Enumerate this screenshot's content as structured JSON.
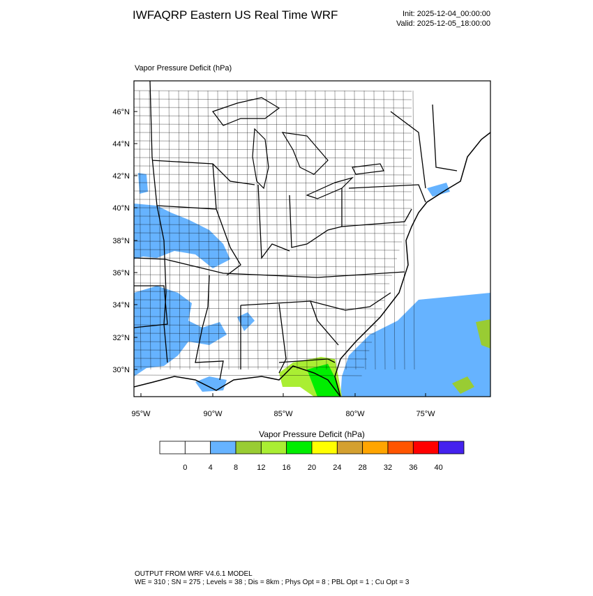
{
  "header": {
    "title": "IWFAQRP Eastern US Real Time WRF",
    "init": "Init: 2025-12-04_00:00:00",
    "valid": "Valid: 2025-12-05_18:00:00"
  },
  "map": {
    "subtitle": "Vapor Pressure Deficit   (hPa)",
    "lat_labels": [
      "46°N",
      "44°N",
      "42°N",
      "40°N",
      "38°N",
      "36°N",
      "34°N",
      "32°N",
      "30°N"
    ],
    "lon_labels": [
      "95°W",
      "90°W",
      "85°W",
      "80°W",
      "75°W"
    ]
  },
  "colorbar": {
    "title": "Vapor Pressure Deficit  (hPa)",
    "colors": [
      "#ffffff",
      "#ffffff",
      "#66b3ff",
      "#99cc33",
      "#aaee33",
      "#00ee00",
      "#ffff00",
      "#d4a030",
      "#ffa500",
      "#ff5500",
      "#ff0000",
      "#4422ee"
    ],
    "ticks": [
      0,
      4,
      8,
      12,
      16,
      20,
      24,
      28,
      32,
      36,
      40
    ]
  },
  "footer": {
    "line1": "OUTPUT FROM WRF V4.6.1 MODEL",
    "line2": "WE = 310 ; SN = 275 ; Levels = 38 ; Dis = 8km ; Phys Opt = 8 ; PBL Opt = 1 ; Cu Opt = 3"
  }
}
